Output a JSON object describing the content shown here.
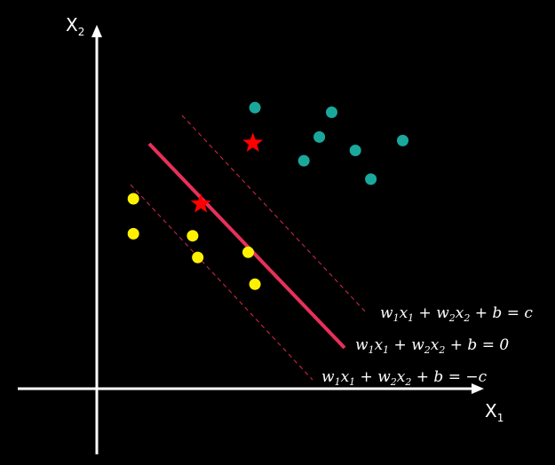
{
  "axes": {
    "x_label": "X",
    "x_subscript": "1",
    "y_label": "X",
    "y_subscript": "2"
  },
  "equations": {
    "upper_margin": {
      "w1": "w",
      "s1": "1",
      "x1": "x",
      "t1": "1",
      "w2": "w",
      "s2": "2",
      "x2": "x",
      "t2": "2",
      "rhs": "+ b = c"
    },
    "decision_boundary": {
      "w1": "w",
      "s1": "1",
      "x1": "x",
      "t1": "1",
      "w2": "w",
      "s2": "2",
      "x2": "x",
      "t2": "2",
      "rhs": "+ b = 0"
    },
    "lower_margin": {
      "w1": "w",
      "s1": "1",
      "x1": "x",
      "t1": "1",
      "w2": "w",
      "s2": "2",
      "x2": "x",
      "t2": "2",
      "rhs": "+ b = −c"
    }
  },
  "colors": {
    "background": "#000000",
    "axis": "#ffffff",
    "boundary": "#e8305a",
    "margin": "#d92b4a",
    "class_a": "#1aa89c",
    "class_b": "#fff200",
    "support_vector": "#ff0000"
  },
  "class_a_points": [
    {
      "x": 3.07,
      "y": 5.46
    },
    {
      "x": 4.56,
      "y": 5.37
    },
    {
      "x": 4.32,
      "y": 4.89
    },
    {
      "x": 5.94,
      "y": 4.82
    },
    {
      "x": 5.02,
      "y": 4.63
    },
    {
      "x": 4.02,
      "y": 4.43
    },
    {
      "x": 5.32,
      "y": 4.07
    }
  ],
  "class_b_points": [
    {
      "x": 0.71,
      "y": 3.69
    },
    {
      "x": 0.71,
      "y": 3.01
    },
    {
      "x": 1.86,
      "y": 2.97
    },
    {
      "x": 2.94,
      "y": 2.65
    },
    {
      "x": 1.96,
      "y": 2.55
    },
    {
      "x": 3.07,
      "y": 2.03
    }
  ],
  "support_vectors": [
    {
      "x": 3.03,
      "y": 4.77
    },
    {
      "x": 2.02,
      "y": 3.59
    }
  ]
}
